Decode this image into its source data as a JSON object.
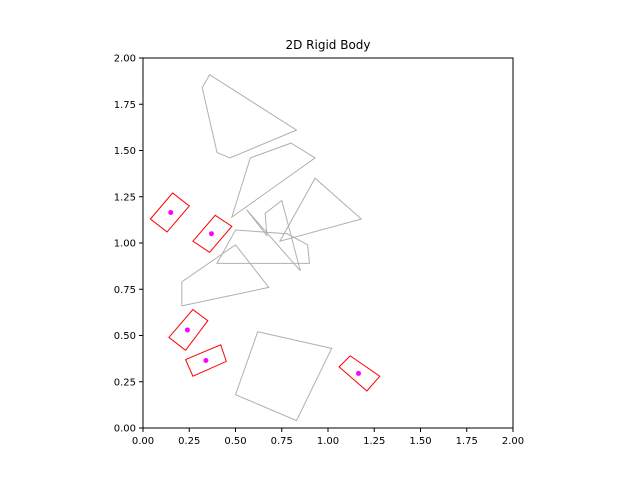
{
  "chart_data": {
    "type": "scatter",
    "title": "2D Rigid Body",
    "xlabel": "",
    "ylabel": "",
    "xlim": [
      0.0,
      2.0
    ],
    "ylim": [
      0.0,
      2.0
    ],
    "grid": false,
    "x_ticks": [
      "0.00",
      "0.25",
      "0.50",
      "0.75",
      "1.00",
      "1.25",
      "1.50",
      "1.75",
      "2.00"
    ],
    "y_ticks": [
      "0.00",
      "0.25",
      "0.50",
      "0.75",
      "1.00",
      "1.25",
      "1.50",
      "1.75",
      "2.00"
    ],
    "colors": {
      "obstacle": "#b0b0b0",
      "body": "#ff0000",
      "center": "#ff00ff"
    },
    "obstacles": [
      [
        [
          0.32,
          1.84
        ],
        [
          0.36,
          1.91
        ],
        [
          0.83,
          1.61
        ],
        [
          0.47,
          1.46
        ],
        [
          0.4,
          1.49
        ]
      ],
      [
        [
          0.48,
          1.14
        ],
        [
          0.58,
          1.46
        ],
        [
          0.8,
          1.54
        ],
        [
          0.93,
          1.46
        ]
      ],
      [
        [
          0.67,
          1.04
        ],
        [
          0.66,
          1.16
        ],
        [
          0.75,
          1.23
        ],
        [
          0.85,
          0.85
        ],
        [
          0.56,
          1.18
        ]
      ],
      [
        [
          0.74,
          1.01
        ],
        [
          0.93,
          1.35
        ],
        [
          1.18,
          1.13
        ]
      ],
      [
        [
          0.5,
          1.07
        ],
        [
          0.4,
          0.89
        ],
        [
          0.9,
          0.89
        ],
        [
          0.89,
          0.99
        ],
        [
          0.78,
          1.05
        ]
      ],
      [
        [
          0.21,
          0.66
        ],
        [
          0.68,
          0.76
        ],
        [
          0.5,
          0.99
        ],
        [
          0.21,
          0.79
        ]
      ],
      [
        [
          0.62,
          0.52
        ],
        [
          1.02,
          0.43
        ],
        [
          0.83,
          0.04
        ],
        [
          0.5,
          0.18
        ],
        [
          0.56,
          0.35
        ]
      ]
    ],
    "bodies": [
      {
        "center": [
          0.15,
          1.165
        ],
        "corners": [
          [
            0.04,
            1.13
          ],
          [
            0.16,
            1.27
          ],
          [
            0.25,
            1.2
          ],
          [
            0.13,
            1.06
          ]
        ]
      },
      {
        "center": [
          0.37,
          1.05
        ],
        "corners": [
          [
            0.27,
            1.01
          ],
          [
            0.39,
            1.15
          ],
          [
            0.48,
            1.09
          ],
          [
            0.36,
            0.95
          ]
        ]
      },
      {
        "center": [
          0.24,
          0.53
        ],
        "corners": [
          [
            0.14,
            0.49
          ],
          [
            0.27,
            0.64
          ],
          [
            0.35,
            0.58
          ],
          [
            0.23,
            0.42
          ]
        ]
      },
      {
        "center": [
          0.34,
          0.365
        ],
        "corners": [
          [
            0.23,
            0.37
          ],
          [
            0.42,
            0.45
          ],
          [
            0.45,
            0.36
          ],
          [
            0.27,
            0.28
          ]
        ]
      },
      {
        "center": [
          1.165,
          0.295
        ],
        "corners": [
          [
            1.06,
            0.33
          ],
          [
            1.21,
            0.2
          ],
          [
            1.28,
            0.28
          ],
          [
            1.12,
            0.39
          ]
        ]
      }
    ]
  }
}
